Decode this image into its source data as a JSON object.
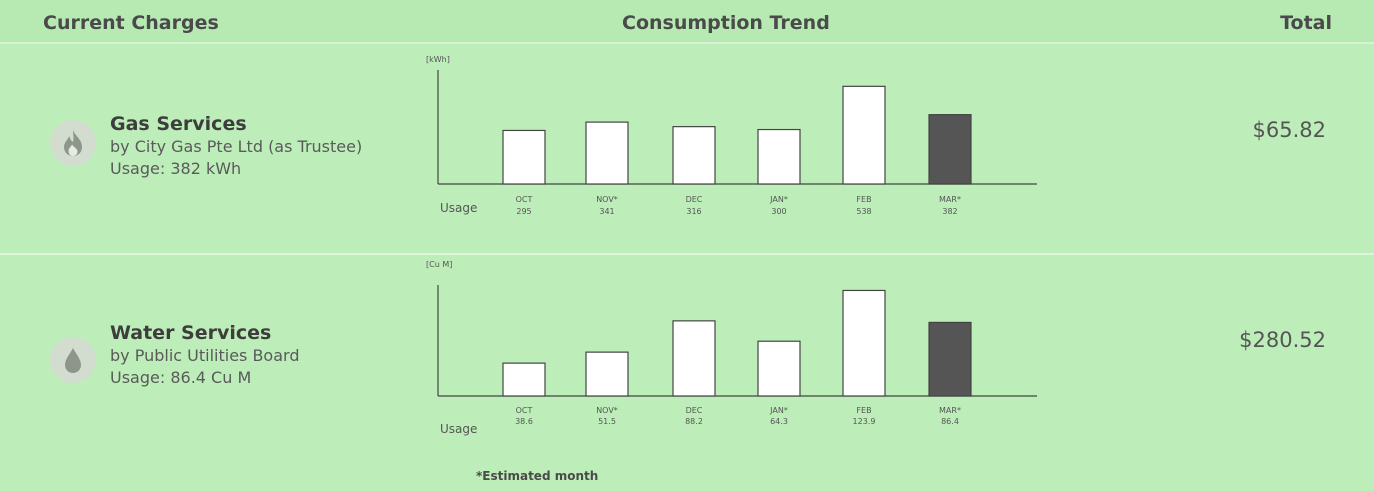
{
  "header": {
    "current_charges": "Current Charges",
    "consumption_trend": "Consumption Trend",
    "total": "Total"
  },
  "services": [
    {
      "name": "Gas Services",
      "provider": "by City Gas Pte Ltd (as Trustee)",
      "usage": "Usage: 382 kWh",
      "total": "$65.82",
      "icon": "flame-icon"
    },
    {
      "name": "Water Services",
      "provider": "by Public Utilities Board",
      "usage": "Usage: 86.4 Cu M",
      "total": "$280.52",
      "icon": "water-drop-icon"
    }
  ],
  "footnote": "*Estimated month",
  "chart_data": [
    {
      "type": "bar",
      "unit_label": "[kWh]",
      "row_label": "Usage",
      "categories": [
        "OCT",
        "NOV*",
        "DEC",
        "JAN*",
        "FEB",
        "MAR*"
      ],
      "values": [
        295,
        341,
        316,
        300,
        538,
        382
      ],
      "value_labels": [
        "295",
        "341",
        "316",
        "300",
        "538",
        "382"
      ],
      "highlight_index": 5,
      "ylim": [
        0,
        650
      ],
      "colors": {
        "bar_fill": "#ffffff",
        "highlight_fill": "#555555",
        "stroke": "#444444"
      }
    },
    {
      "type": "bar",
      "unit_label": "[Cu M]",
      "row_label": "Usage",
      "categories": [
        "OCT",
        "NOV*",
        "DEC",
        "JAN*",
        "FEB",
        "MAR*"
      ],
      "values": [
        38.6,
        51.5,
        88.2,
        64.3,
        123.9,
        86.4
      ],
      "value_labels": [
        "38.6",
        "51.5",
        "88.2",
        "64.3",
        "123.9",
        "86.4"
      ],
      "highlight_index": 5,
      "ylim": [
        0,
        135
      ],
      "colors": {
        "bar_fill": "#ffffff",
        "highlight_fill": "#555555",
        "stroke": "#444444"
      }
    }
  ]
}
